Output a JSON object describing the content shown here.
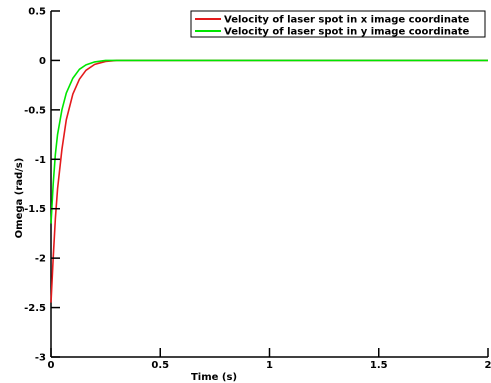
{
  "chart_data": {
    "type": "line",
    "xlabel": "Time (s)",
    "ylabel": "Omega (rad/s)",
    "xlim": [
      0,
      2
    ],
    "ylim": [
      -3,
      0.5
    ],
    "xticks": [
      0,
      0.5,
      1,
      1.5,
      2
    ],
    "xtick_labels": [
      "0",
      "0.5",
      "1",
      "1.5",
      "2"
    ],
    "yticks": [
      0.5,
      0,
      -0.5,
      -1,
      -1.5,
      -2,
      -2.5,
      -3
    ],
    "ytick_labels": [
      "0.5",
      "0",
      "-0.5",
      "-1",
      "-1.5",
      "-2",
      "-2.5",
      "-3"
    ],
    "grid": false,
    "legend_position": "top-right",
    "series": [
      {
        "name": "Velocity of laser spot in x image coordinate",
        "color": "#e41a1c",
        "x": [
          0,
          0.01,
          0.02,
          0.03,
          0.05,
          0.07,
          0.1,
          0.13,
          0.16,
          0.2,
          0.25,
          0.3,
          0.35,
          2
        ],
        "y": [
          -2.45,
          -2.0,
          -1.6,
          -1.3,
          -0.9,
          -0.6,
          -0.34,
          -0.19,
          -0.1,
          -0.04,
          -0.01,
          0,
          0,
          0
        ]
      },
      {
        "name": "Velocity of laser spot in y image coordinate",
        "color": "#00e600",
        "x": [
          0,
          0.01,
          0.02,
          0.03,
          0.05,
          0.07,
          0.1,
          0.13,
          0.16,
          0.2,
          0.25,
          0.3,
          0.35,
          2
        ],
        "y": [
          -1.65,
          -1.25,
          -0.95,
          -0.75,
          -0.5,
          -0.33,
          -0.18,
          -0.09,
          -0.045,
          -0.015,
          0,
          0,
          0,
          0
        ]
      }
    ]
  }
}
